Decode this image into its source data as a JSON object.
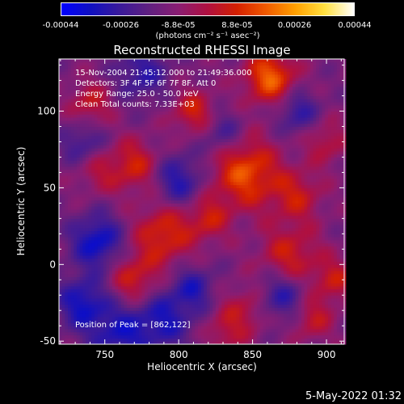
{
  "colorbar": {
    "ticks": [
      "-0.00044",
      "-0.00026",
      "-8.8e-05",
      "8.8e-05",
      "0.00026",
      "0.00044"
    ],
    "tick_values": [
      -0.00044,
      -0.00026,
      -8.8e-05,
      8.8e-05,
      0.00026,
      0.00044
    ],
    "range": [
      -0.00044,
      0.00044
    ],
    "unit": "(photons cm⁻² s⁻¹ asec⁻²)",
    "colors": [
      "#0000ff",
      "#1010c0",
      "#3a1a9a",
      "#602080",
      "#8a1d72",
      "#b01040",
      "#d42000",
      "#f05a00",
      "#ffa000",
      "#ffe040",
      "#ffffff"
    ]
  },
  "chart_data": {
    "type": "heatmap",
    "title": "Reconstructed RHESSI Image",
    "xlabel": "Heliocentric X (arcsec)",
    "ylabel": "Heliocentric Y (arcsec)",
    "xlim": [
      719,
      912
    ],
    "ylim": [
      -52,
      134
    ],
    "xticks": [
      750,
      800,
      850,
      900
    ],
    "yticks": [
      -50,
      0,
      50,
      100
    ],
    "peak": [
      862,
      122
    ]
  },
  "annotations": {
    "line1": "15-Nov-2004 21:45:12.000 to 21:49:36.000",
    "line2": "Detectors: 3F 4F 5F 6F 7F 8F, Att 0",
    "line3": "Energy Range: 25.0 - 50.0 keV",
    "line4": "Clean     Total counts: 7.33E+03",
    "peak_label": "Position of Peak = [862,122]"
  },
  "footer": {
    "date": "5-May-2022 01:32"
  }
}
